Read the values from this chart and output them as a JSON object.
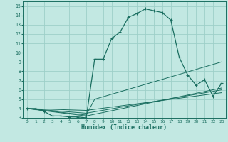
{
  "xlabel": "Humidex (Indice chaleur)",
  "bg_color": "#c2e8e2",
  "grid_color": "#9ecfc8",
  "line_color": "#1a6e60",
  "xlim": [
    -0.5,
    23.5
  ],
  "ylim": [
    3,
    15.5
  ],
  "xticks": [
    0,
    1,
    2,
    3,
    4,
    5,
    6,
    7,
    8,
    9,
    10,
    11,
    12,
    13,
    14,
    15,
    16,
    17,
    18,
    19,
    20,
    21,
    22,
    23
  ],
  "yticks": [
    3,
    4,
    5,
    6,
    7,
    8,
    9,
    10,
    11,
    12,
    13,
    14,
    15
  ],
  "main_line": {
    "x": [
      0,
      1,
      2,
      3,
      4,
      5,
      6,
      7,
      8,
      9,
      10,
      11,
      12,
      13,
      14,
      15,
      16,
      17,
      18,
      19,
      20,
      21,
      22,
      23
    ],
    "y": [
      4.0,
      4.0,
      3.7,
      3.2,
      3.2,
      3.1,
      3.1,
      3.0,
      9.3,
      9.3,
      11.5,
      12.2,
      13.8,
      14.2,
      14.7,
      14.5,
      14.3,
      13.5,
      9.5,
      7.6,
      6.5,
      7.1,
      5.3,
      6.7
    ]
  },
  "fan_lines": [
    {
      "x": [
        0,
        7,
        8,
        23
      ],
      "y": [
        4.0,
        3.3,
        5.0,
        9.0
      ]
    },
    {
      "x": [
        0,
        7,
        23
      ],
      "y": [
        4.0,
        3.2,
        6.2
      ]
    },
    {
      "x": [
        0,
        7,
        23
      ],
      "y": [
        4.0,
        3.5,
        6.0
      ]
    },
    {
      "x": [
        0,
        7,
        23
      ],
      "y": [
        4.0,
        3.8,
        5.7
      ]
    }
  ]
}
